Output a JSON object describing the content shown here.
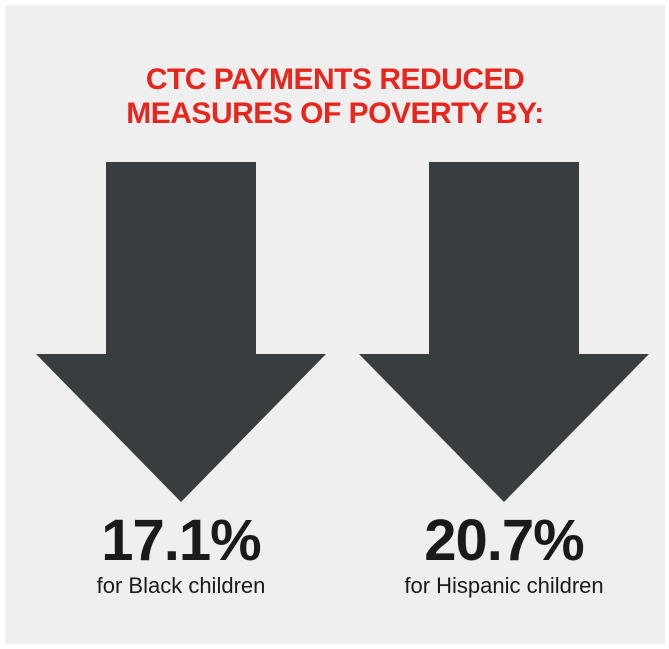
{
  "headline": {
    "line1": "CTC PAYMENTS REDUCED",
    "line2": "MEASURES OF POVERTY BY:"
  },
  "stats": [
    {
      "value": "17.1%",
      "label": "for Black children"
    },
    {
      "value": "20.7%",
      "label": "for Hispanic children"
    }
  ],
  "colors": {
    "background": "#efefef",
    "headline": "#e8261e",
    "arrow": "#383d40",
    "text": "#1a1a1a"
  },
  "icons": {
    "arrow": "down-arrow-icon"
  }
}
